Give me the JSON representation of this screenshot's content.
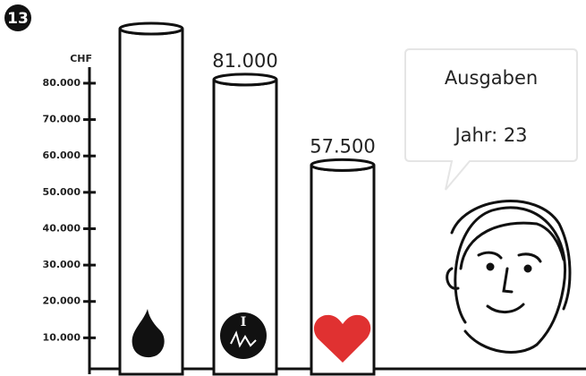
{
  "badge": "13",
  "chart_data": {
    "type": "bar",
    "y_label": "CHF",
    "categories": [
      null,
      null,
      null
    ],
    "values": [
      95000,
      81000,
      57500
    ],
    "value_labels": [
      null,
      "81.000",
      "57.500"
    ],
    "color": "#ffffff",
    "ylim": [
      0,
      95000
    ],
    "yticks": [
      {
        "value": 10000,
        "label": "10.000"
      },
      {
        "value": 20000,
        "label": "20.000"
      },
      {
        "value": 30000,
        "label": "30.000"
      },
      {
        "value": 40000,
        "label": "40.000"
      },
      {
        "value": 50000,
        "label": "50.000"
      },
      {
        "value": 60000,
        "label": "60.000"
      },
      {
        "value": 70000,
        "label": "70.000"
      },
      {
        "value": 80000,
        "label": "80.000"
      }
    ],
    "grid": false
  },
  "speech_bubble": {
    "title": "Ausgaben",
    "subtitle": "Jahr: 23"
  }
}
